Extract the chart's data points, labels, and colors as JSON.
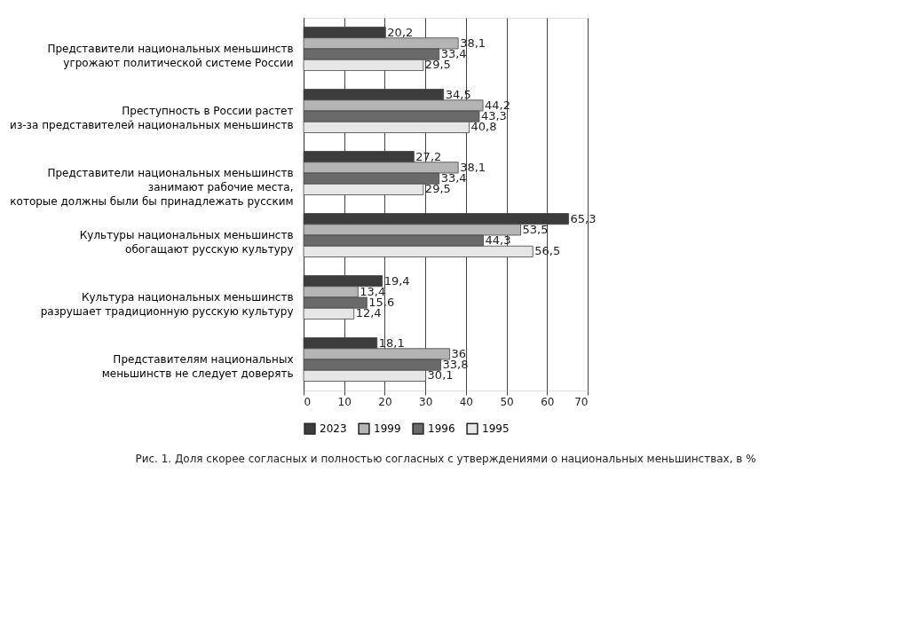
{
  "chart_data": {
    "type": "bar",
    "orientation": "horizontal",
    "title": "Рис. 1. Доля скорее согласных и полностью согласных с утверждениями о национальных меньшинствах, в %",
    "categories": [
      "Представители национальных меньшинств\nугрожают политической системе России",
      "Преступность в России растет\nиз-за представителей национальных меньшинств",
      "Представители национальных меньшинств\nзанимают рабочие места,\nкоторые должны были бы принадлежать русским",
      "Культуры национальных меньшинств\nобогащают русскую культуру",
      "Культура национальных меньшинств\nразрушает традиционную русскую культуру",
      "Представителям национальных\nменьшинств не следует доверять"
    ],
    "series": [
      {
        "name": "2023",
        "color": "#3c3c3c",
        "values": [
          20.2,
          34.5,
          27.2,
          65.3,
          19.4,
          18.1
        ],
        "value_labels": [
          "20,2",
          "34,5",
          "27,2",
          "65,3",
          "19,4",
          "18,1"
        ]
      },
      {
        "name": "1999",
        "color": "#b4b4b4",
        "values": [
          38.1,
          44.2,
          38.1,
          53.5,
          13.4,
          36
        ],
        "value_labels": [
          "38,1",
          "44,2",
          "38,1",
          "53,5",
          "13,4",
          "36"
        ]
      },
      {
        "name": "1996",
        "color": "#6a6a6a",
        "values": [
          33.4,
          43.3,
          33.4,
          44.3,
          15.6,
          33.8
        ],
        "value_labels": [
          "33,4",
          "43,3",
          "33,4",
          "44,3",
          "15,6",
          "33,8"
        ]
      },
      {
        "name": "1995",
        "color": "#e6e6e6",
        "values": [
          29.5,
          40.8,
          29.5,
          56.5,
          12.4,
          30.1
        ],
        "value_labels": [
          "29,5",
          "40,8",
          "29,5",
          "56,5",
          "12,4",
          "30,1"
        ]
      }
    ],
    "xlim": [
      0,
      70
    ],
    "xticks": [
      0,
      10,
      20,
      30,
      40,
      50,
      60,
      70
    ],
    "grid": "x",
    "legend": "bottom"
  }
}
